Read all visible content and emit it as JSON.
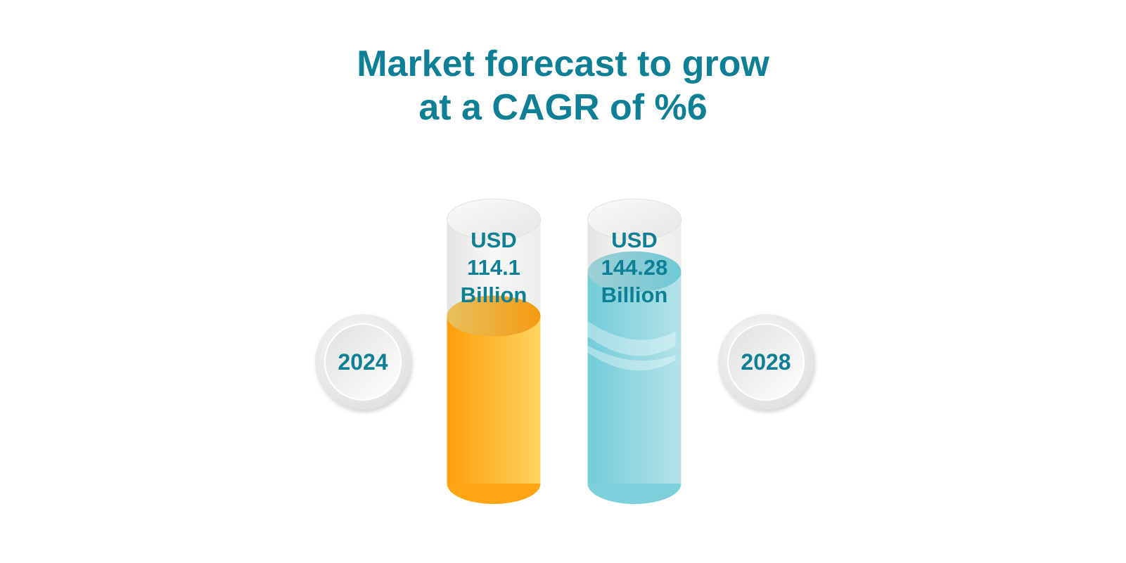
{
  "title_lines": [
    "Market forecast to grow",
    "at a CAGR of %6"
  ],
  "colors": {
    "title": "#0E7F94",
    "text": "#0E7F94",
    "series_2024": "#FFA40D",
    "series_2028": "#7ECFD9",
    "tube": "#F2F2F2"
  },
  "chart_data": {
    "type": "bar",
    "title": "Market forecast to grow at a CAGR of %6",
    "categories": [
      "2024",
      "2028"
    ],
    "values": [
      114.1,
      144.28
    ],
    "value_labels": [
      [
        "USD",
        "114.1",
        "Billion"
      ],
      [
        "USD",
        "144.28",
        "Billion"
      ]
    ],
    "unit": "USD Billion",
    "ylim": [
      0,
      180
    ],
    "grid": false,
    "legend": "none"
  }
}
